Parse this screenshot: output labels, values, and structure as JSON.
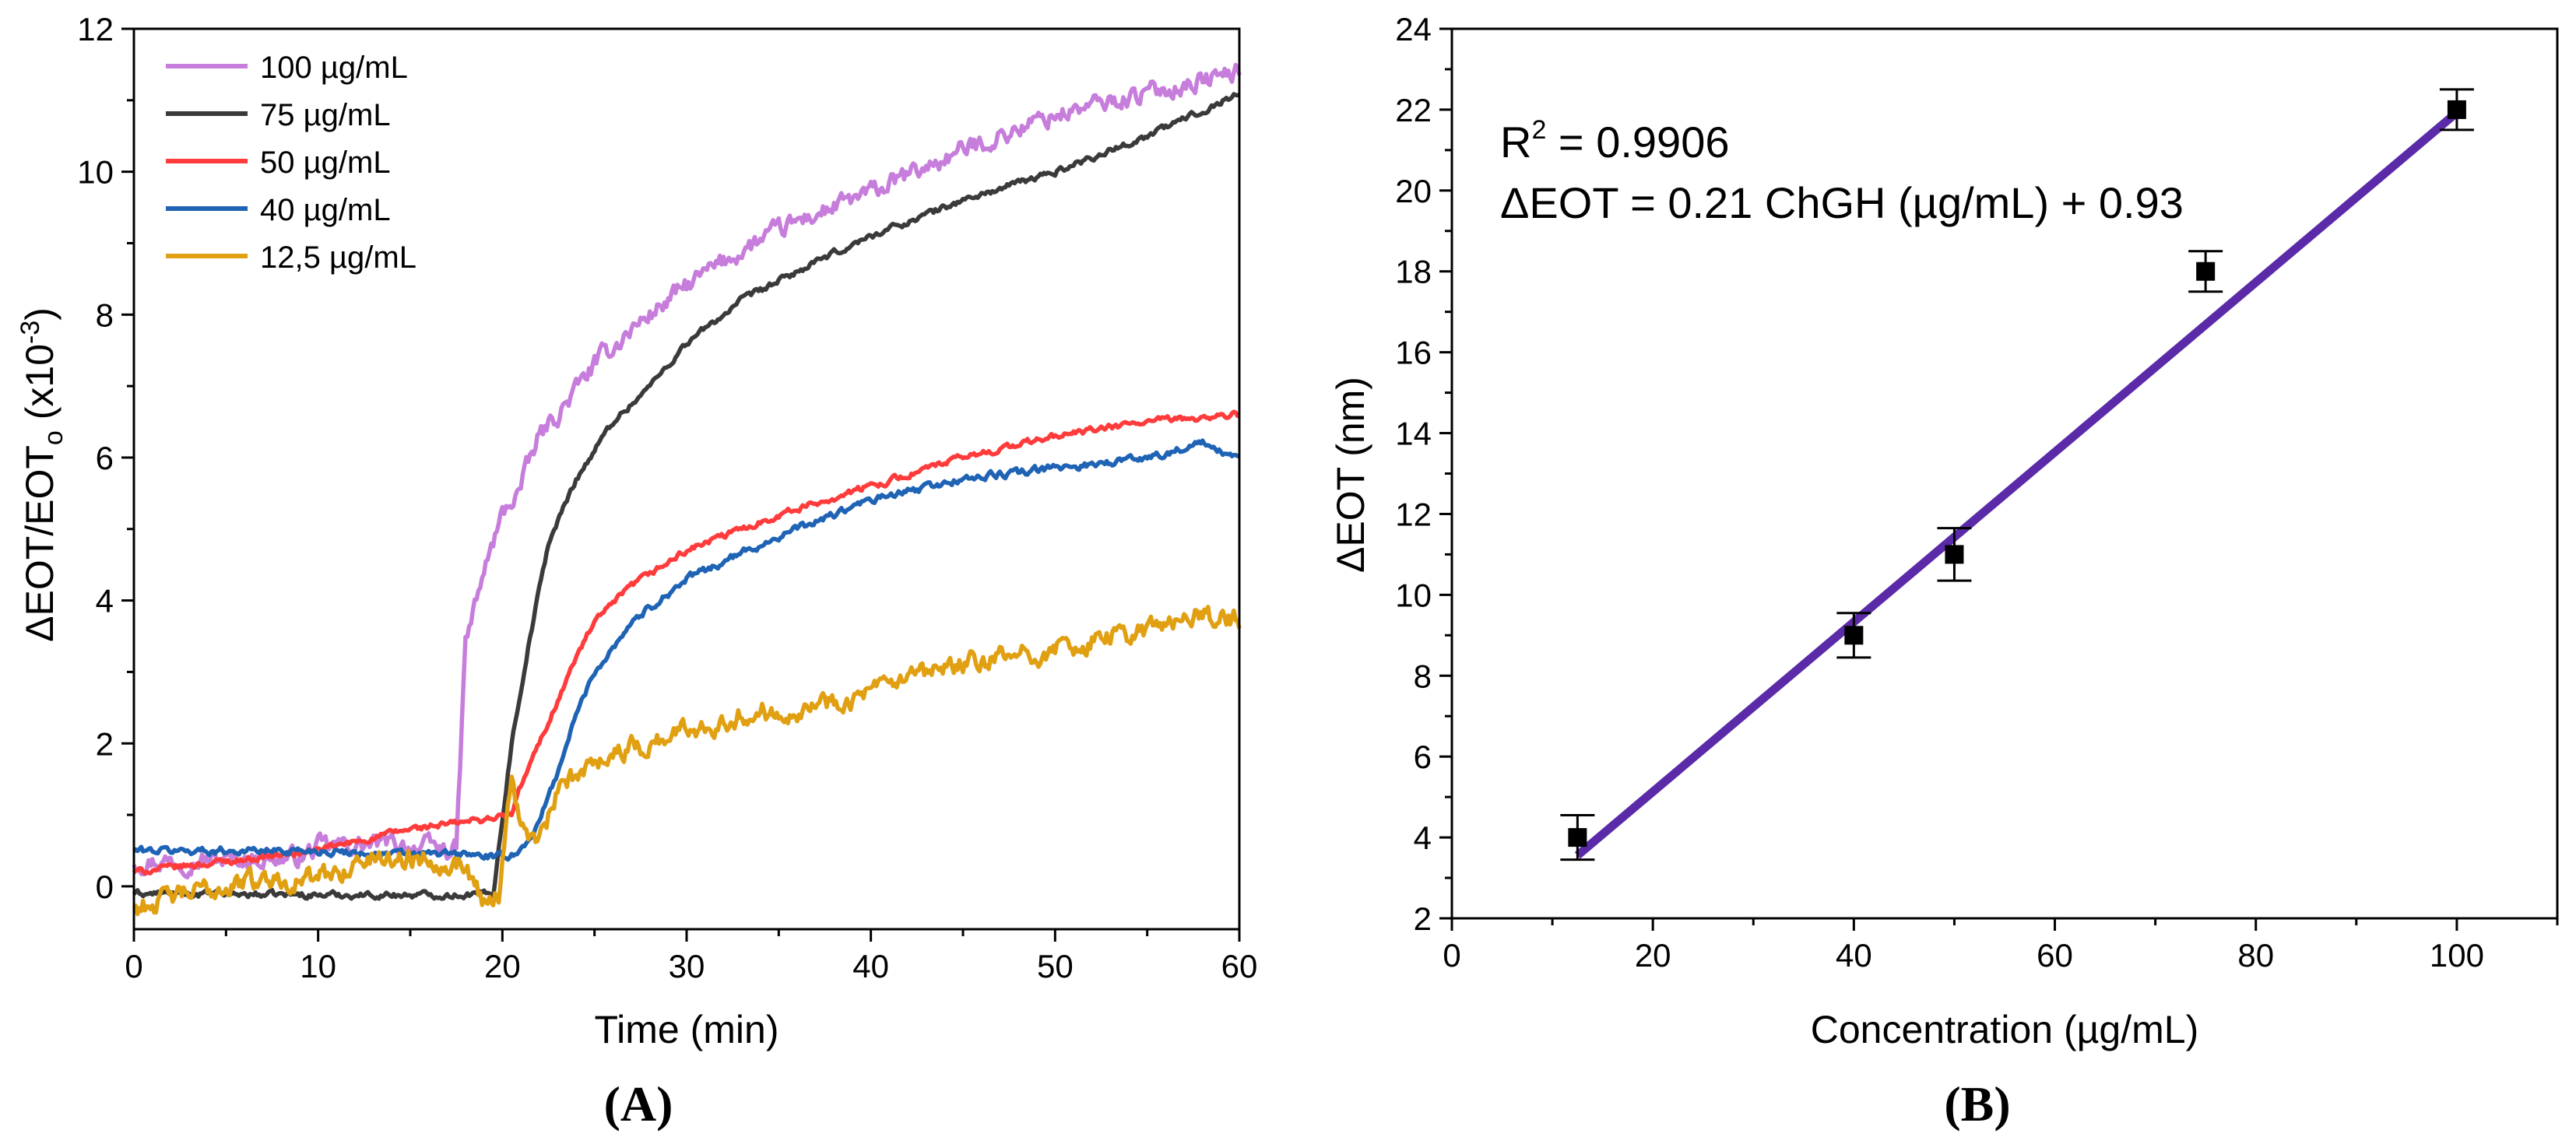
{
  "chart_data": [
    {
      "panel": "(A)",
      "type": "line",
      "xlabel": "Time (min)",
      "ylabel_parts": [
        "ΔEOT/EOT",
        "o",
        " (x10",
        "-3",
        ")"
      ],
      "xlim": [
        0,
        60
      ],
      "ylim": [
        -0.6,
        12
      ],
      "xticks": [
        0,
        10,
        20,
        30,
        40,
        50,
        60
      ],
      "yticks": [
        0,
        2,
        4,
        6,
        8,
        10,
        12
      ],
      "legend_position": "top-left",
      "series": [
        {
          "name": "100 µg/mL",
          "color": "#c77ddb",
          "noise": 0.18,
          "key_points": [
            [
              0,
              0.35
            ],
            [
              9,
              0.4
            ],
            [
              10,
              0.55
            ],
            [
              14,
              0.6
            ],
            [
              17.5,
              0.5
            ],
            [
              18,
              3.4
            ],
            [
              19,
              4.4
            ],
            [
              20,
              5.2
            ],
            [
              21,
              5.6
            ],
            [
              22,
              6.3
            ],
            [
              23,
              6.6
            ],
            [
              25,
              7.3
            ],
            [
              27,
              7.8
            ],
            [
              30,
              8.4
            ],
            [
              33,
              8.9
            ],
            [
              36,
              9.3
            ],
            [
              40,
              9.7
            ],
            [
              45,
              10.3
            ],
            [
              50,
              10.8
            ],
            [
              55,
              11.1
            ],
            [
              60,
              11.4
            ]
          ]
        },
        {
          "name": "75 µg/mL",
          "color": "#3a3a3a",
          "noise": 0.06,
          "key_points": [
            [
              0,
              -0.1
            ],
            [
              10,
              -0.12
            ],
            [
              17,
              -0.12
            ],
            [
              19.5,
              -0.1
            ],
            [
              20.5,
              2.0
            ],
            [
              21.5,
              3.5
            ],
            [
              22.5,
              4.8
            ],
            [
              24,
              5.7
            ],
            [
              26,
              6.5
            ],
            [
              28,
              7.0
            ],
            [
              30,
              7.6
            ],
            [
              33,
              8.2
            ],
            [
              36,
              8.6
            ],
            [
              40,
              9.1
            ],
            [
              45,
              9.6
            ],
            [
              50,
              10.0
            ],
            [
              55,
              10.5
            ],
            [
              60,
              11.1
            ]
          ]
        },
        {
          "name": "50 µg/mL",
          "color": "#ff3b3b",
          "noise": 0.06,
          "key_points": [
            [
              0,
              0.2
            ],
            [
              10,
              0.5
            ],
            [
              15,
              0.8
            ],
            [
              18,
              0.9
            ],
            [
              20.5,
              1.0
            ],
            [
              21,
              1.4
            ],
            [
              22,
              2.0
            ],
            [
              23,
              2.6
            ],
            [
              24,
              3.2
            ],
            [
              25,
              3.7
            ],
            [
              27,
              4.2
            ],
            [
              30,
              4.7
            ],
            [
              35,
              5.2
            ],
            [
              40,
              5.6
            ],
            [
              45,
              6.0
            ],
            [
              50,
              6.3
            ],
            [
              55,
              6.5
            ],
            [
              60,
              6.6
            ]
          ]
        },
        {
          "name": "40 µg/mL",
          "color": "#1f63b5",
          "noise": 0.07,
          "key_points": [
            [
              0,
              0.5
            ],
            [
              10,
              0.5
            ],
            [
              14,
              0.45
            ],
            [
              18,
              0.45
            ],
            [
              20,
              0.4
            ],
            [
              21,
              0.5
            ],
            [
              22,
              0.9
            ],
            [
              23,
              1.6
            ],
            [
              24,
              2.4
            ],
            [
              25,
              3.0
            ],
            [
              27,
              3.7
            ],
            [
              30,
              4.3
            ],
            [
              35,
              4.9
            ],
            [
              40,
              5.4
            ],
            [
              45,
              5.7
            ],
            [
              50,
              5.85
            ],
            [
              55,
              6.0
            ],
            [
              58,
              6.2
            ],
            [
              60,
              5.95
            ]
          ]
        },
        {
          "name": "12,5 µg/mL",
          "color": "#e0a012",
          "noise": 0.2,
          "key_points": [
            [
              0,
              -0.3
            ],
            [
              3,
              -0.1
            ],
            [
              7,
              0.1
            ],
            [
              10,
              0.1
            ],
            [
              13,
              0.4
            ],
            [
              16,
              0.4
            ],
            [
              18,
              0.3
            ],
            [
              19,
              -0.2
            ],
            [
              19.8,
              -0.1
            ],
            [
              20.5,
              1.6
            ],
            [
              21,
              0.8
            ],
            [
              22,
              0.6
            ],
            [
              23,
              1.3
            ],
            [
              25,
              1.8
            ],
            [
              28,
              2.0
            ],
            [
              30,
              2.2
            ],
            [
              33,
              2.4
            ],
            [
              36,
              2.5
            ],
            [
              40,
              2.7
            ],
            [
              45,
              3.1
            ],
            [
              50,
              3.3
            ],
            [
              55,
              3.6
            ],
            [
              58,
              3.8
            ],
            [
              60,
              3.7
            ]
          ]
        }
      ]
    },
    {
      "panel": "(B)",
      "type": "scatter",
      "xlabel": "Concentration (µg/mL)",
      "ylabel": "ΔEOT (nm)",
      "xlim": [
        0,
        110
      ],
      "ylim": [
        2,
        24
      ],
      "xticks": [
        0,
        20,
        40,
        60,
        80,
        100
      ],
      "yticks": [
        2,
        4,
        6,
        8,
        10,
        12,
        14,
        16,
        18,
        20,
        22,
        24
      ],
      "points": [
        {
          "x": 12.5,
          "y": 4.0,
          "err": 0.55
        },
        {
          "x": 40,
          "y": 9.0,
          "err": 0.55
        },
        {
          "x": 50,
          "y": 11.0,
          "err": 0.65
        },
        {
          "x": 75,
          "y": 18.0,
          "err": 0.5
        },
        {
          "x": 100,
          "y": 22.0,
          "err": 0.5
        }
      ],
      "fit": {
        "slope": 0.21,
        "intercept": 0.93,
        "x_range": [
          12.5,
          100
        ],
        "color": "#5b2aa8"
      },
      "annotation_r2_prefix": "R",
      "annotation_r2_sup": "2",
      "annotation_r2_value": " = 0.9906",
      "annotation_equation": "ΔEOT = 0.21 ChGH (µg/mL) + 0.93"
    }
  ]
}
